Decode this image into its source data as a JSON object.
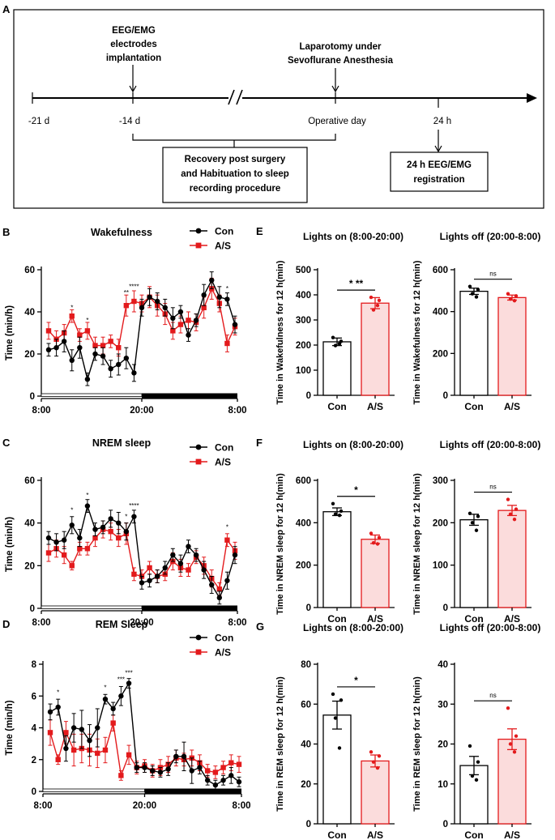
{
  "colors": {
    "con": "#000000",
    "as": "#e31a1c",
    "as_fill": "#fbdcdc"
  },
  "panel_a": {
    "letter": "A",
    "events": [
      {
        "label_lines": [
          "EEG/EMG",
          "electrodes",
          "implantation"
        ]
      },
      {
        "label_lines": [
          "Laparotomy under",
          "Sevoflurane Anesthesia"
        ]
      }
    ],
    "timepoints": [
      "-21 d",
      "-14 d",
      "Operative day",
      "24 h"
    ],
    "recovery_box": [
      "Recovery post surgery",
      "and Habituation to sleep",
      "recording procedure"
    ],
    "registration_box": [
      "24 h EEG/EMG",
      "registration"
    ]
  },
  "chart_data": [
    {
      "id": "B",
      "letter": "B",
      "type": "line",
      "title": "Wakefulness",
      "ylabel": "Time (min/h)",
      "ylim": [
        0,
        60
      ],
      "yticks": [
        0,
        20,
        40,
        60
      ],
      "xticks": [
        "8:00",
        "20:00",
        "8:00"
      ],
      "legend": [
        "Con",
        "A/S"
      ],
      "legend_position": "top-right",
      "series": [
        {
          "name": "Con",
          "values": [
            22,
            23,
            26,
            17,
            23,
            8,
            20,
            19,
            13,
            15,
            18,
            11,
            42,
            47,
            45,
            42,
            37,
            40,
            29,
            36,
            48,
            55,
            47,
            46,
            34
          ],
          "err": [
            3,
            4,
            5,
            5,
            5,
            3,
            3,
            4,
            4,
            5,
            5,
            4,
            4,
            4,
            4,
            4,
            5,
            3,
            3,
            3,
            5,
            4,
            5,
            3,
            4
          ]
        },
        {
          "name": "A/S",
          "values": [
            31,
            27,
            30,
            38,
            29,
            31,
            24,
            24,
            26,
            23,
            43,
            45,
            44,
            47,
            43,
            39,
            31,
            34,
            36,
            35,
            42,
            51,
            44,
            25,
            33
          ],
          "err": [
            4,
            4,
            4,
            3,
            3,
            4,
            4,
            4,
            3,
            4,
            5,
            5,
            4,
            5,
            5,
            5,
            4,
            4,
            4,
            4,
            5,
            5,
            4,
            4,
            4
          ]
        }
      ],
      "sig": [
        {
          "at": 3,
          "text": "*",
          "value": 41
        },
        {
          "at": 5,
          "text": "*",
          "value": 35
        },
        {
          "at": 10,
          "text": "**",
          "value": 48
        },
        {
          "at": 11,
          "text": "****",
          "value": 51
        },
        {
          "at": 23,
          "text": "*",
          "value": 50
        }
      ]
    },
    {
      "id": "E1",
      "letter": "E",
      "type": "bar",
      "title": "Lights on (8:00-20:00)",
      "ylabel": "Time in Wakefulness for 12 h(min)",
      "ylim": [
        0,
        500
      ],
      "yticks": [
        0,
        100,
        200,
        300,
        400,
        500
      ],
      "categories": [
        "Con",
        "A/S"
      ],
      "values": [
        213,
        367
      ],
      "err": [
        15,
        22
      ],
      "points": [
        [
          230,
          215,
          198,
          205
        ],
        [
          390,
          378,
          340,
          358
        ]
      ],
      "sig": "* **"
    },
    {
      "id": "E2",
      "type": "bar",
      "title": "Lights off (20:00-8:00)",
      "ylabel": "Time in Wakefulness for 12 h(min)",
      "ylim": [
        0,
        600
      ],
      "yticks": [
        0,
        200,
        400,
        600
      ],
      "categories": [
        "Con",
        "A/S"
      ],
      "values": [
        497,
        467
      ],
      "err": [
        15,
        12
      ],
      "points": [
        [
          520,
          505,
          485,
          470
        ],
        [
          485,
          475,
          460,
          452
        ]
      ],
      "sig": "ns"
    },
    {
      "id": "C",
      "letter": "C",
      "type": "line",
      "title": "NREM sleep",
      "ylabel": "Time (min/h)",
      "ylim": [
        0,
        60
      ],
      "yticks": [
        0,
        20,
        40,
        60
      ],
      "xticks": [
        "8:00",
        "20:00",
        "8:00"
      ],
      "legend": [
        "Con",
        "A/S"
      ],
      "legend_position": "top-right",
      "series": [
        {
          "name": "Con",
          "values": [
            33,
            31,
            32,
            39,
            33,
            48,
            37,
            38,
            42,
            40,
            36,
            43,
            12,
            13,
            15,
            19,
            25,
            21,
            29,
            25,
            18,
            11,
            5,
            13,
            25
          ],
          "err": [
            3,
            4,
            4,
            4,
            4,
            3,
            3,
            3,
            4,
            5,
            4,
            3,
            3,
            3,
            3,
            3,
            3,
            4,
            3,
            3,
            4,
            4,
            3,
            4,
            4
          ]
        },
        {
          "name": "A/S",
          "values": [
            26,
            28,
            25,
            20,
            28,
            28,
            33,
            37,
            36,
            33,
            35,
            16,
            15,
            19,
            15,
            16,
            22,
            19,
            18,
            24,
            20,
            14,
            9,
            32,
            27
          ],
          "err": [
            4,
            4,
            4,
            2,
            3,
            3,
            4,
            4,
            4,
            4,
            5,
            3,
            3,
            3,
            3,
            3,
            4,
            4,
            3,
            3,
            4,
            4,
            3,
            3,
            4
          ]
        }
      ],
      "sig": [
        {
          "at": 3,
          "text": "*",
          "value": 45
        },
        {
          "at": 5,
          "text": "*",
          "value": 52
        },
        {
          "at": 10,
          "text": "*",
          "value": 42
        },
        {
          "at": 11,
          "text": "****",
          "value": 47
        },
        {
          "at": 23,
          "text": "*",
          "value": 37
        }
      ]
    },
    {
      "id": "F1",
      "letter": "F",
      "type": "bar",
      "title": "Lights on (8:00-20:00)",
      "ylabel": "Time in NREM sleep for 12 h(min)",
      "ylim": [
        0,
        600
      ],
      "yticks": [
        0,
        200,
        400,
        600
      ],
      "categories": [
        "Con",
        "A/S"
      ],
      "values": [
        452,
        322
      ],
      "err": [
        18,
        20
      ],
      "points": [
        [
          490,
          455,
          440,
          435
        ],
        [
          350,
          330,
          305,
          300
        ]
      ],
      "sig": "*"
    },
    {
      "id": "F2",
      "type": "bar",
      "title": "Lights off (20:00-8:00)",
      "ylabel": "Time in NREM sleep for 12 h(min)",
      "ylim": [
        0,
        300
      ],
      "yticks": [
        0,
        100,
        200,
        300
      ],
      "categories": [
        "Con",
        "A/S"
      ],
      "values": [
        207,
        229
      ],
      "err": [
        13,
        12
      ],
      "points": [
        [
          222,
          215,
          200,
          182
        ],
        [
          255,
          232,
          220,
          208
        ]
      ],
      "sig": "ns"
    },
    {
      "id": "D",
      "letter": "D",
      "type": "line",
      "title": "REM Sleep",
      "ylabel": "Time (min/h)",
      "ylim": [
        0,
        8
      ],
      "yticks": [
        0,
        2,
        4,
        6,
        8
      ],
      "xticks": [
        "8:00",
        "20:00",
        "8:00"
      ],
      "legend": [
        "Con",
        "A/S"
      ],
      "legend_position": "top-right",
      "series": [
        {
          "name": "Con",
          "values": [
            5.0,
            5.3,
            2.7,
            4.0,
            3.9,
            3.2,
            4.0,
            5.8,
            5.2,
            6.0,
            6.8,
            1.5,
            1.5,
            1.3,
            1.2,
            1.4,
            2.2,
            2.2,
            1.3,
            1.5,
            0.7,
            0.4,
            0.7,
            1.0,
            0.6
          ],
          "err": [
            0.5,
            0.5,
            0.8,
            0.9,
            1.2,
            1.0,
            1.2,
            0.3,
            0.4,
            0.6,
            0.3,
            0.3,
            0.3,
            0.3,
            0.3,
            0.4,
            0.4,
            0.9,
            0.8,
            0.4,
            0.3,
            0.3,
            0.3,
            0.5,
            0.3
          ]
        },
        {
          "name": "A/S",
          "values": [
            3.7,
            2.0,
            3.7,
            2.6,
            2.7,
            2.6,
            2.4,
            2.6,
            4.3,
            1.0,
            2.3,
            1.5,
            1.6,
            1.3,
            1.5,
            1.7,
            2.1,
            2.0,
            2.1,
            1.8,
            1.3,
            1.2,
            1.5,
            1.8,
            1.7
          ],
          "err": [
            0.8,
            0.3,
            0.7,
            1.0,
            0.9,
            1.0,
            0.9,
            0.8,
            0.5,
            0.3,
            0.6,
            0.4,
            0.4,
            0.4,
            0.5,
            0.5,
            0.5,
            0.4,
            0.5,
            0.5,
            0.4,
            0.4,
            0.4,
            0.5,
            0.5
          ]
        }
      ],
      "sig": [
        {
          "at": 1,
          "text": "*",
          "value": 6.1
        },
        {
          "at": 7,
          "text": "*",
          "value": 6.4
        },
        {
          "at": 9,
          "text": "***",
          "value": 6.9
        },
        {
          "at": 10,
          "text": "***",
          "value": 7.3
        }
      ]
    },
    {
      "id": "G1",
      "letter": "G",
      "type": "bar",
      "title": "Lights on (8:00-20:00)",
      "ylabel": "Time in REM sleep for 12 h(min)",
      "ylim": [
        0,
        80
      ],
      "yticks": [
        0,
        20,
        40,
        60,
        80
      ],
      "categories": [
        "Con",
        "A/S"
      ],
      "values": [
        54.5,
        31.5
      ],
      "err": [
        7,
        3
      ],
      "points": [
        [
          65,
          62,
          53,
          38
        ],
        [
          36,
          34,
          31,
          28
        ]
      ],
      "sig": "*"
    },
    {
      "id": "G2",
      "type": "bar",
      "title": "Lights off (20:00-8:00)",
      "ylabel": "Time in REM sleep for 12 h(min)",
      "ylim": [
        0,
        40
      ],
      "yticks": [
        0,
        10,
        20,
        30,
        40
      ],
      "categories": [
        "Con",
        "A/S"
      ],
      "values": [
        14.6,
        21.2
      ],
      "err": [
        2.3,
        2.6
      ],
      "points": [
        [
          19.5,
          15.5,
          12,
          11
        ],
        [
          29,
          22,
          20,
          18
        ]
      ],
      "sig": "ns"
    }
  ]
}
